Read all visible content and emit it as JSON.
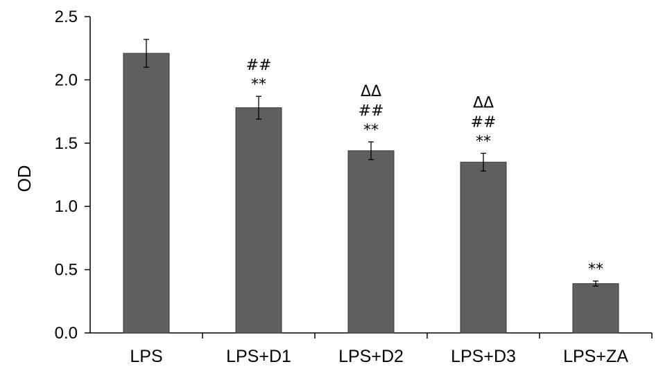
{
  "chart_data": {
    "type": "bar",
    "categories": [
      "LPS",
      "LPS+D1",
      "LPS+D2",
      "LPS+D3",
      "LPS+ZA"
    ],
    "values": [
      2.21,
      1.78,
      1.44,
      1.35,
      0.39
    ],
    "errors": [
      0.11,
      0.09,
      0.07,
      0.07,
      0.02
    ],
    "annotations": [
      [],
      [
        "##",
        "**"
      ],
      [
        "ΔΔ",
        "##",
        "**"
      ],
      [
        "ΔΔ",
        "##",
        "**"
      ],
      [
        "**"
      ]
    ],
    "ylabel": "OD",
    "xlabel": "",
    "title": "",
    "ylim": [
      0,
      2.5
    ],
    "yticks": [
      0.0,
      0.5,
      1.0,
      1.5,
      2.0,
      2.5
    ],
    "ytick_labels": [
      "0.0",
      "0.5",
      "1.0",
      "1.5",
      "2.0",
      "2.5"
    ],
    "grid": false,
    "bar_color": "#5f5f5f",
    "bar_edge_color": "#3a3a3a"
  }
}
